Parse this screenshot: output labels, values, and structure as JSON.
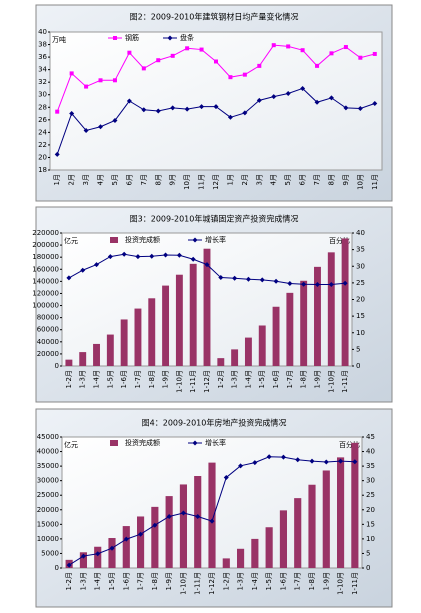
{
  "chart_data": [
    {
      "type": "line",
      "title": "图2：2009-2010年建筑钢材日均产量变化情况",
      "unit_left": "万吨",
      "categories": [
        "1月",
        "2月",
        "3月",
        "4月",
        "5月",
        "6月",
        "7月",
        "8月",
        "9月",
        "10月",
        "11月",
        "12月",
        "1月",
        "2月",
        "3月",
        "4月",
        "5月",
        "6月",
        "7月",
        "8月",
        "9月",
        "10月",
        "11月"
      ],
      "series": [
        {
          "name": "钢筋",
          "color": "#ff00ff",
          "marker": "square",
          "values": [
            27.3,
            33.4,
            31.3,
            32.3,
            32.3,
            36.7,
            34.2,
            35.5,
            36.2,
            37.4,
            37.2,
            35.3,
            32.8,
            33.2,
            34.6,
            37.9,
            37.7,
            37.1,
            34.6,
            36.6,
            37.6,
            35.9,
            36.5
          ]
        },
        {
          "name": "盘条",
          "color": "#000080",
          "marker": "diamond",
          "values": [
            20.5,
            27.0,
            24.3,
            24.9,
            25.9,
            29.0,
            27.6,
            27.4,
            27.9,
            27.7,
            28.1,
            28.1,
            26.4,
            27.1,
            29.1,
            29.7,
            30.2,
            31.0,
            28.8,
            29.5,
            27.9,
            27.8,
            28.6
          ]
        }
      ],
      "ylim": [
        18,
        40
      ],
      "yticks": [
        18,
        20,
        22,
        24,
        26,
        28,
        30,
        32,
        34,
        36,
        38,
        40
      ]
    },
    {
      "type": "combo",
      "title": "图3：2009-2010年城镇固定资产投资完成情况",
      "unit_left": "亿元",
      "unit_right": "百分比",
      "categories": [
        "1-2月",
        "1-3月",
        "1-4月",
        "1-5月",
        "1-6月",
        "1-7月",
        "1-8月",
        "1-9月",
        "1-10月",
        "1-11月",
        "1-12月",
        "1-2月",
        "1-3月",
        "1-4月",
        "1-5月",
        "1-6月",
        "1-7月",
        "1-8月",
        "1-9月",
        "1-10月",
        "1-11月"
      ],
      "series": [
        {
          "name": "投资完成额",
          "color": "#993366",
          "values": [
            10500,
            23000,
            36500,
            52000,
            77000,
            95000,
            112000,
            133000,
            151000,
            169000,
            194000,
            13000,
            27500,
            47000,
            67000,
            98000,
            121000,
            141000,
            164000,
            188000,
            211000
          ]
        },
        {
          "name": "增长率",
          "color": "#000080",
          "axis": "y2",
          "marker": "diamond",
          "values": [
            26.5,
            28.8,
            30.5,
            32.9,
            33.6,
            32.9,
            33.0,
            33.4,
            33.3,
            32.1,
            30.5,
            26.6,
            26.4,
            26.1,
            25.9,
            25.5,
            24.8,
            24.6,
            24.5,
            24.5,
            24.9
          ]
        }
      ],
      "ylim": [
        0,
        220000
      ],
      "yticks": [
        0,
        20000,
        40000,
        60000,
        80000,
        100000,
        120000,
        140000,
        160000,
        180000,
        200000,
        220000
      ],
      "y2lim": [
        0,
        40
      ],
      "y2ticks": [
        0,
        5,
        10,
        15,
        20,
        25,
        30,
        35,
        40
      ]
    },
    {
      "type": "combo",
      "title": "图4：2009-2010年房地产投资完成情况",
      "unit_left": "亿元",
      "unit_right": "百分比",
      "categories": [
        "1-2月",
        "1-3月",
        "1-4月",
        "1-5月",
        "1-6月",
        "1-7月",
        "1-8月",
        "1-9月",
        "1-10月",
        "1-11月",
        "1-12月",
        "1-2月",
        "1-3月",
        "1-4月",
        "1-5月",
        "1-6月",
        "1-7月",
        "1-8月",
        "1-9月",
        "1-10月",
        "1-11月"
      ],
      "series": [
        {
          "name": "投资完成额",
          "color": "#993366",
          "values": [
            2800,
            5400,
            7300,
            10300,
            14400,
            17700,
            21000,
            24700,
            28700,
            31600,
            36200,
            3300,
            6600,
            10000,
            14000,
            19800,
            24000,
            28600,
            33500,
            38000,
            43000
          ]
        },
        {
          "name": "增长率",
          "color": "#000080",
          "axis": "y2",
          "marker": "diamond",
          "values": [
            1.0,
            4.1,
            4.9,
            6.8,
            9.9,
            11.6,
            14.7,
            17.7,
            18.9,
            17.7,
            16.1,
            31.1,
            35.1,
            36.2,
            38.2,
            38.1,
            37.2,
            36.7,
            36.4,
            36.7,
            36.5
          ]
        }
      ],
      "ylim": [
        0,
        45000
      ],
      "yticks": [
        0,
        5000,
        10000,
        15000,
        20000,
        25000,
        30000,
        35000,
        40000,
        45000
      ],
      "y2lim": [
        0,
        45
      ],
      "y2ticks": [
        0,
        5,
        10,
        15,
        20,
        25,
        30,
        35,
        40,
        45
      ]
    }
  ]
}
